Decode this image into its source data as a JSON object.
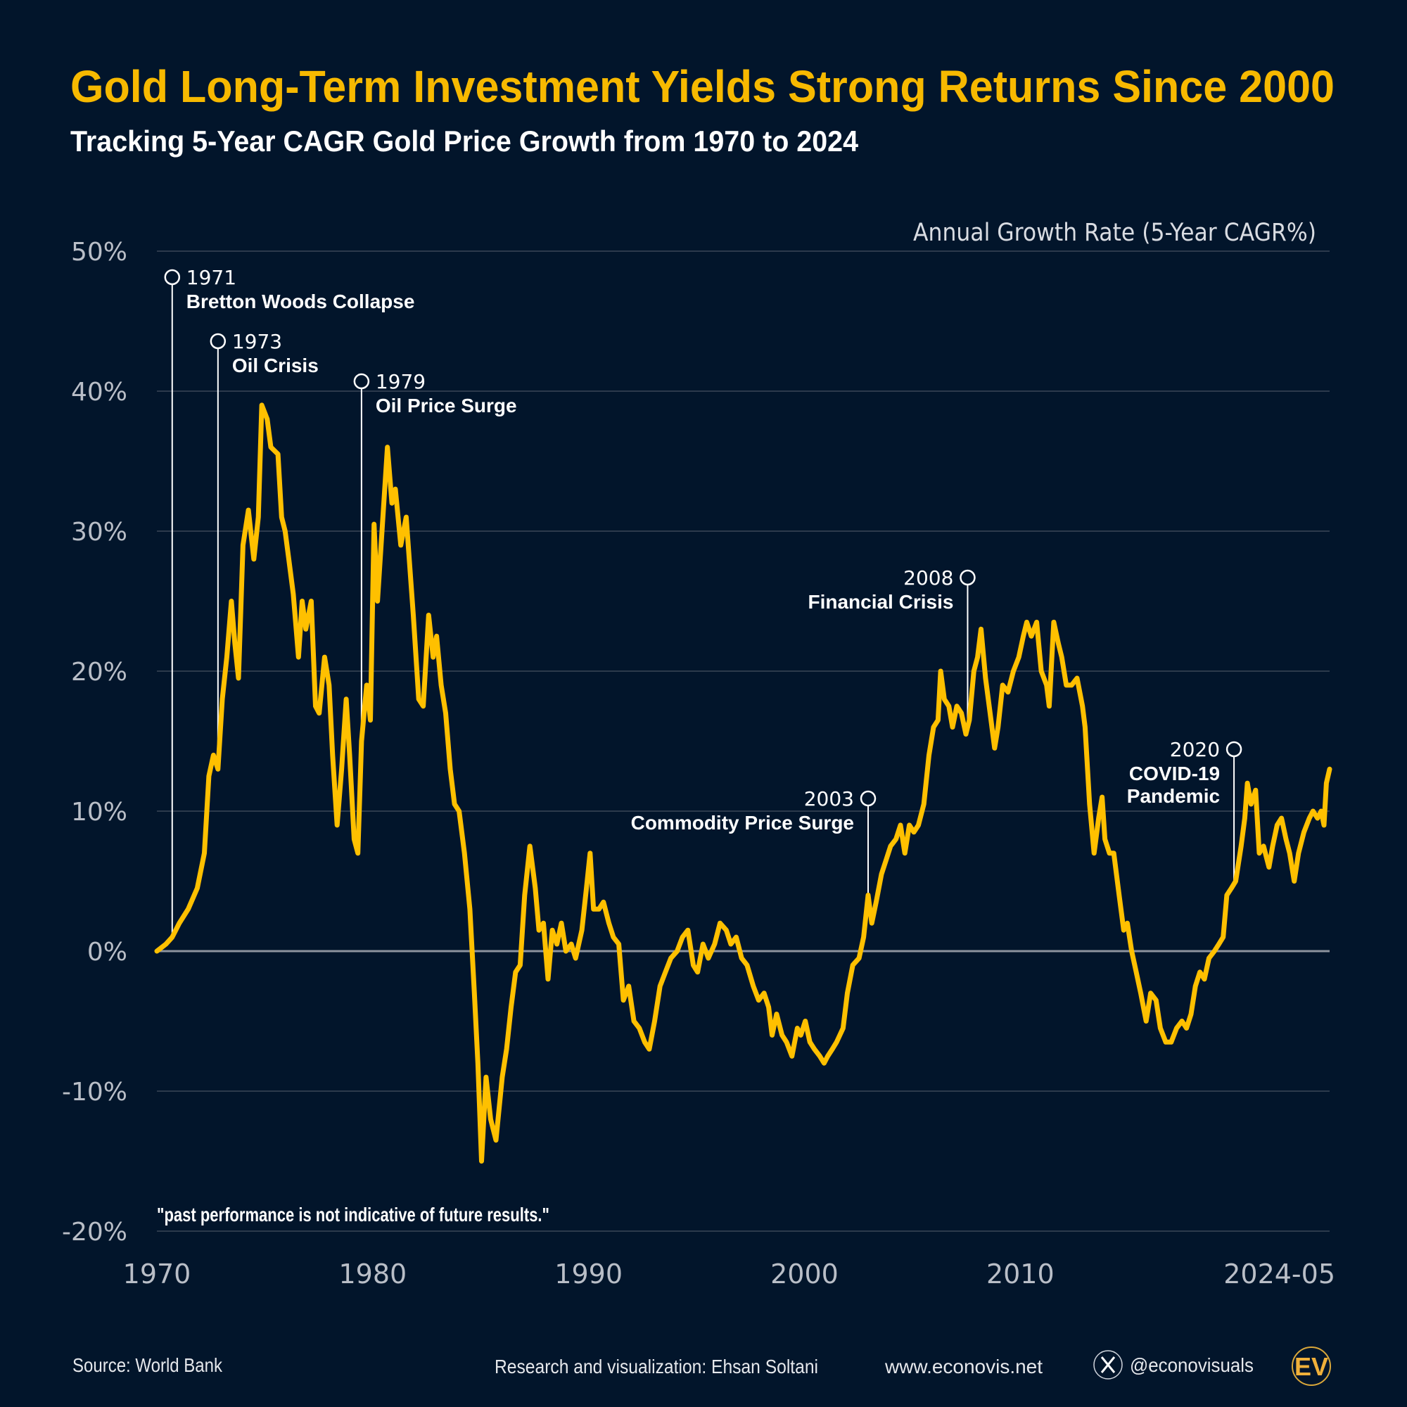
{
  "title": "Gold Long-Term Investment Yields Strong Returns Since 2000",
  "subtitle": "Tracking 5-Year CAGR Gold Price Growth from 1970 to 2024",
  "footnote": "\"past performance is not indicative of future results.\"",
  "footer": {
    "source": "Source: World Bank",
    "credit": "Research and visualization: Ehsan Soltani",
    "website": "www.econovis.net",
    "social_handle": "@econovisuals",
    "social_icon": "x-logo-icon",
    "logo": "EV"
  },
  "colors": {
    "background": "#02152b",
    "title": "#f7b900",
    "line": "#ffc000",
    "grid": "#3a4658",
    "zero_line": "#8c939e"
  },
  "chart_data": {
    "type": "line",
    "ylabel": "Annual Growth Rate (5-Year CAGR%)",
    "xlim": [
      1970,
      2024.33
    ],
    "ylim": [
      -20,
      50
    ],
    "grid": true,
    "y_ticks": [
      {
        "v": 50,
        "label": "50%"
      },
      {
        "v": 40,
        "label": "40%"
      },
      {
        "v": 30,
        "label": "30%"
      },
      {
        "v": 20,
        "label": "20%"
      },
      {
        "v": 10,
        "label": "10%"
      },
      {
        "v": 0,
        "label": "0%"
      },
      {
        "v": -10,
        "label": "-10%"
      },
      {
        "v": -20,
        "label": "-20%"
      }
    ],
    "x_ticks": [
      {
        "v": 1970,
        "label": "1970"
      },
      {
        "v": 1980,
        "label": "1980"
      },
      {
        "v": 1990,
        "label": "1990"
      },
      {
        "v": 2000,
        "label": "2000"
      },
      {
        "v": 2010,
        "label": "2010"
      },
      {
        "v": 2024.33,
        "label": "2024-05"
      }
    ],
    "annotations": [
      {
        "year": "1971",
        "text": "Bretton Woods Collapse",
        "x": 1970.71
      },
      {
        "year": "1973",
        "text": "Oil Crisis",
        "x": 1972.83
      },
      {
        "year": "1979",
        "text": "Oil Price Surge",
        "x": 1979.48
      },
      {
        "year": "2003",
        "text": "Commodity Price Surge",
        "x": 2002.95
      },
      {
        "year": "2008",
        "text": "Financial Crisis",
        "x": 2007.56
      },
      {
        "year": "2020",
        "text": "COVID-19",
        "text2": "Pandemic",
        "x": 2019.9
      }
    ],
    "x": [
      1970.0,
      1970.42,
      1970.71,
      1971.04,
      1971.45,
      1971.87,
      1972.2,
      1972.41,
      1972.62,
      1972.83,
      1973.03,
      1973.24,
      1973.45,
      1973.61,
      1973.78,
      1973.99,
      1974.24,
      1974.49,
      1974.7,
      1974.86,
      1975.11,
      1975.28,
      1975.61,
      1975.78,
      1975.94,
      1976.11,
      1976.32,
      1976.56,
      1976.73,
      1976.9,
      1977.15,
      1977.35,
      1977.52,
      1977.77,
      1977.98,
      1978.14,
      1978.35,
      1978.56,
      1978.77,
      1978.93,
      1979.14,
      1979.31,
      1979.48,
      1979.72,
      1979.89,
      1980.06,
      1980.22,
      1980.43,
      1980.68,
      1980.89,
      1981.05,
      1981.3,
      1981.55,
      1981.88,
      1982.13,
      1982.34,
      1982.59,
      1982.8,
      1982.96,
      1983.17,
      1983.38,
      1983.59,
      1983.79,
      1984.0,
      1984.25,
      1984.5,
      1984.71,
      1984.87,
      1985.04,
      1985.25,
      1985.46,
      1985.71,
      1986.0,
      1986.2,
      1986.41,
      1986.62,
      1986.83,
      1987.04,
      1987.28,
      1987.53,
      1987.7,
      1987.91,
      1988.12,
      1988.32,
      1988.53,
      1988.74,
      1988.95,
      1989.2,
      1989.4,
      1989.69,
      1989.9,
      1990.07,
      1990.23,
      1990.48,
      1990.69,
      1990.94,
      1991.15,
      1991.4,
      1991.61,
      1991.86,
      1992.1,
      1992.35,
      1992.6,
      1992.81,
      1993.06,
      1993.31,
      1993.56,
      1993.81,
      1994.1,
      1994.35,
      1994.6,
      1994.85,
      1995.05,
      1995.3,
      1995.55,
      1995.84,
      1996.09,
      1996.38,
      1996.59,
      1996.84,
      1997.09,
      1997.34,
      1997.63,
      1997.88,
      1998.13,
      1998.34,
      1998.5,
      1998.71,
      1998.96,
      1999.17,
      1999.42,
      1999.67,
      1999.83,
      2000.04,
      2000.25,
      2000.46,
      2000.71,
      2000.91,
      2001.08,
      2001.29,
      2001.49,
      2001.79,
      2001.99,
      2002.24,
      2002.53,
      2002.74,
      2002.95,
      2003.12,
      2003.32,
      2003.57,
      2003.78,
      2003.99,
      2004.24,
      2004.45,
      2004.65,
      2004.86,
      2005.07,
      2005.28,
      2005.53,
      2005.77,
      2005.98,
      2006.19,
      2006.31,
      2006.48,
      2006.69,
      2006.86,
      2007.06,
      2007.27,
      2007.48,
      2007.64,
      2007.85,
      2008.02,
      2008.18,
      2008.39,
      2008.6,
      2008.81,
      2008.97,
      2009.18,
      2009.43,
      2009.68,
      2009.93,
      2010.14,
      2010.3,
      2010.51,
      2010.76,
      2010.97,
      2011.22,
      2011.34,
      2011.55,
      2011.76,
      2011.92,
      2012.13,
      2012.38,
      2012.63,
      2012.88,
      2013.0,
      2013.21,
      2013.42,
      2013.63,
      2013.79,
      2013.92,
      2014.13,
      2014.33,
      2014.58,
      2014.79,
      2014.96,
      2015.16,
      2015.37,
      2015.58,
      2015.83,
      2016.04,
      2016.29,
      2016.49,
      2016.74,
      2016.99,
      2017.24,
      2017.49,
      2017.7,
      2017.91,
      2018.11,
      2018.32,
      2018.53,
      2018.74,
      2018.99,
      2019.2,
      2019.4,
      2019.57,
      2019.78,
      2019.98,
      2020.23,
      2020.4,
      2020.52,
      2020.69,
      2020.9,
      2021.07,
      2021.27,
      2021.52,
      2021.69,
      2021.9,
      2022.1,
      2022.31,
      2022.48,
      2022.69,
      2022.89,
      2023.14,
      2023.39,
      2023.56,
      2023.77,
      2023.94,
      2024.07,
      2024.18,
      2024.33
    ],
    "y": [
      0,
      0.5,
      1,
      2,
      3,
      4.5,
      7,
      12.5,
      14,
      13,
      18,
      21,
      25,
      22,
      19.5,
      29,
      31.5,
      28,
      31,
      39,
      38,
      36,
      35.5,
      31,
      30,
      28,
      25.5,
      21,
      25,
      23,
      25,
      17.5,
      17,
      21,
      19,
      14,
      9,
      13,
      18,
      14,
      8,
      7,
      15,
      19,
      16.5,
      30.5,
      25,
      30,
      36,
      32,
      33,
      29,
      31,
      24,
      18,
      17.5,
      24,
      21,
      22.5,
      19,
      17,
      13,
      10.5,
      10,
      7,
      3,
      -3,
      -8,
      -15,
      -9,
      -12,
      -13.5,
      -9,
      -7,
      -4,
      -1.5,
      -1,
      4,
      7.5,
      4.5,
      1.5,
      2,
      -2,
      1.5,
      0.5,
      2,
      0,
      0.5,
      -0.5,
      1.5,
      4.5,
      7,
      3,
      3,
      3.5,
      2,
      1,
      0.5,
      -3.5,
      -2.5,
      -5,
      -5.5,
      -6.5,
      -7,
      -5,
      -2.5,
      -1.5,
      -0.5,
      0,
      1,
      1.5,
      -1,
      -1.5,
      0.5,
      -0.5,
      0.5,
      2,
      1.5,
      0.5,
      1,
      -0.5,
      -1,
      -2.5,
      -3.5,
      -3,
      -4,
      -6,
      -4.5,
      -6,
      -6.5,
      -7.5,
      -5.5,
      -6,
      -5,
      -6.5,
      -7,
      -7.5,
      -8,
      -7.5,
      -7,
      -6.5,
      -5.5,
      -3,
      -1,
      -0.5,
      1,
      4,
      2,
      3.5,
      5.5,
      6.5,
      7.5,
      8,
      9,
      7,
      9,
      8.5,
      9,
      10.5,
      14,
      16,
      16.5,
      20,
      18,
      17.5,
      16,
      17.5,
      17,
      15.5,
      16.5,
      20,
      21,
      23,
      19.5,
      17,
      14.5,
      16,
      19,
      18.5,
      20,
      21,
      22.5,
      23.5,
      22.5,
      23.5,
      20,
      19,
      17.5,
      23.5,
      22,
      21,
      19,
      19,
      19.5,
      17.5,
      16,
      10.5,
      7,
      9.5,
      11,
      8,
      7,
      7,
      4,
      1.5,
      2,
      0,
      -1.5,
      -3,
      -5,
      -3,
      -3.5,
      -5.5,
      -6.5,
      -6.5,
      -5.5,
      -5,
      -5.5,
      -4.5,
      -2.5,
      -1.5,
      -2,
      -0.5,
      0,
      0.5,
      1,
      4,
      4.5,
      5,
      7.5,
      9.5,
      12,
      10.5,
      11.5,
      7,
      7.5,
      6,
      7.5,
      9,
      9.5,
      8,
      7,
      5,
      7,
      8.5,
      9.5,
      10,
      9.5,
      10,
      9,
      12,
      13
    ]
  }
}
